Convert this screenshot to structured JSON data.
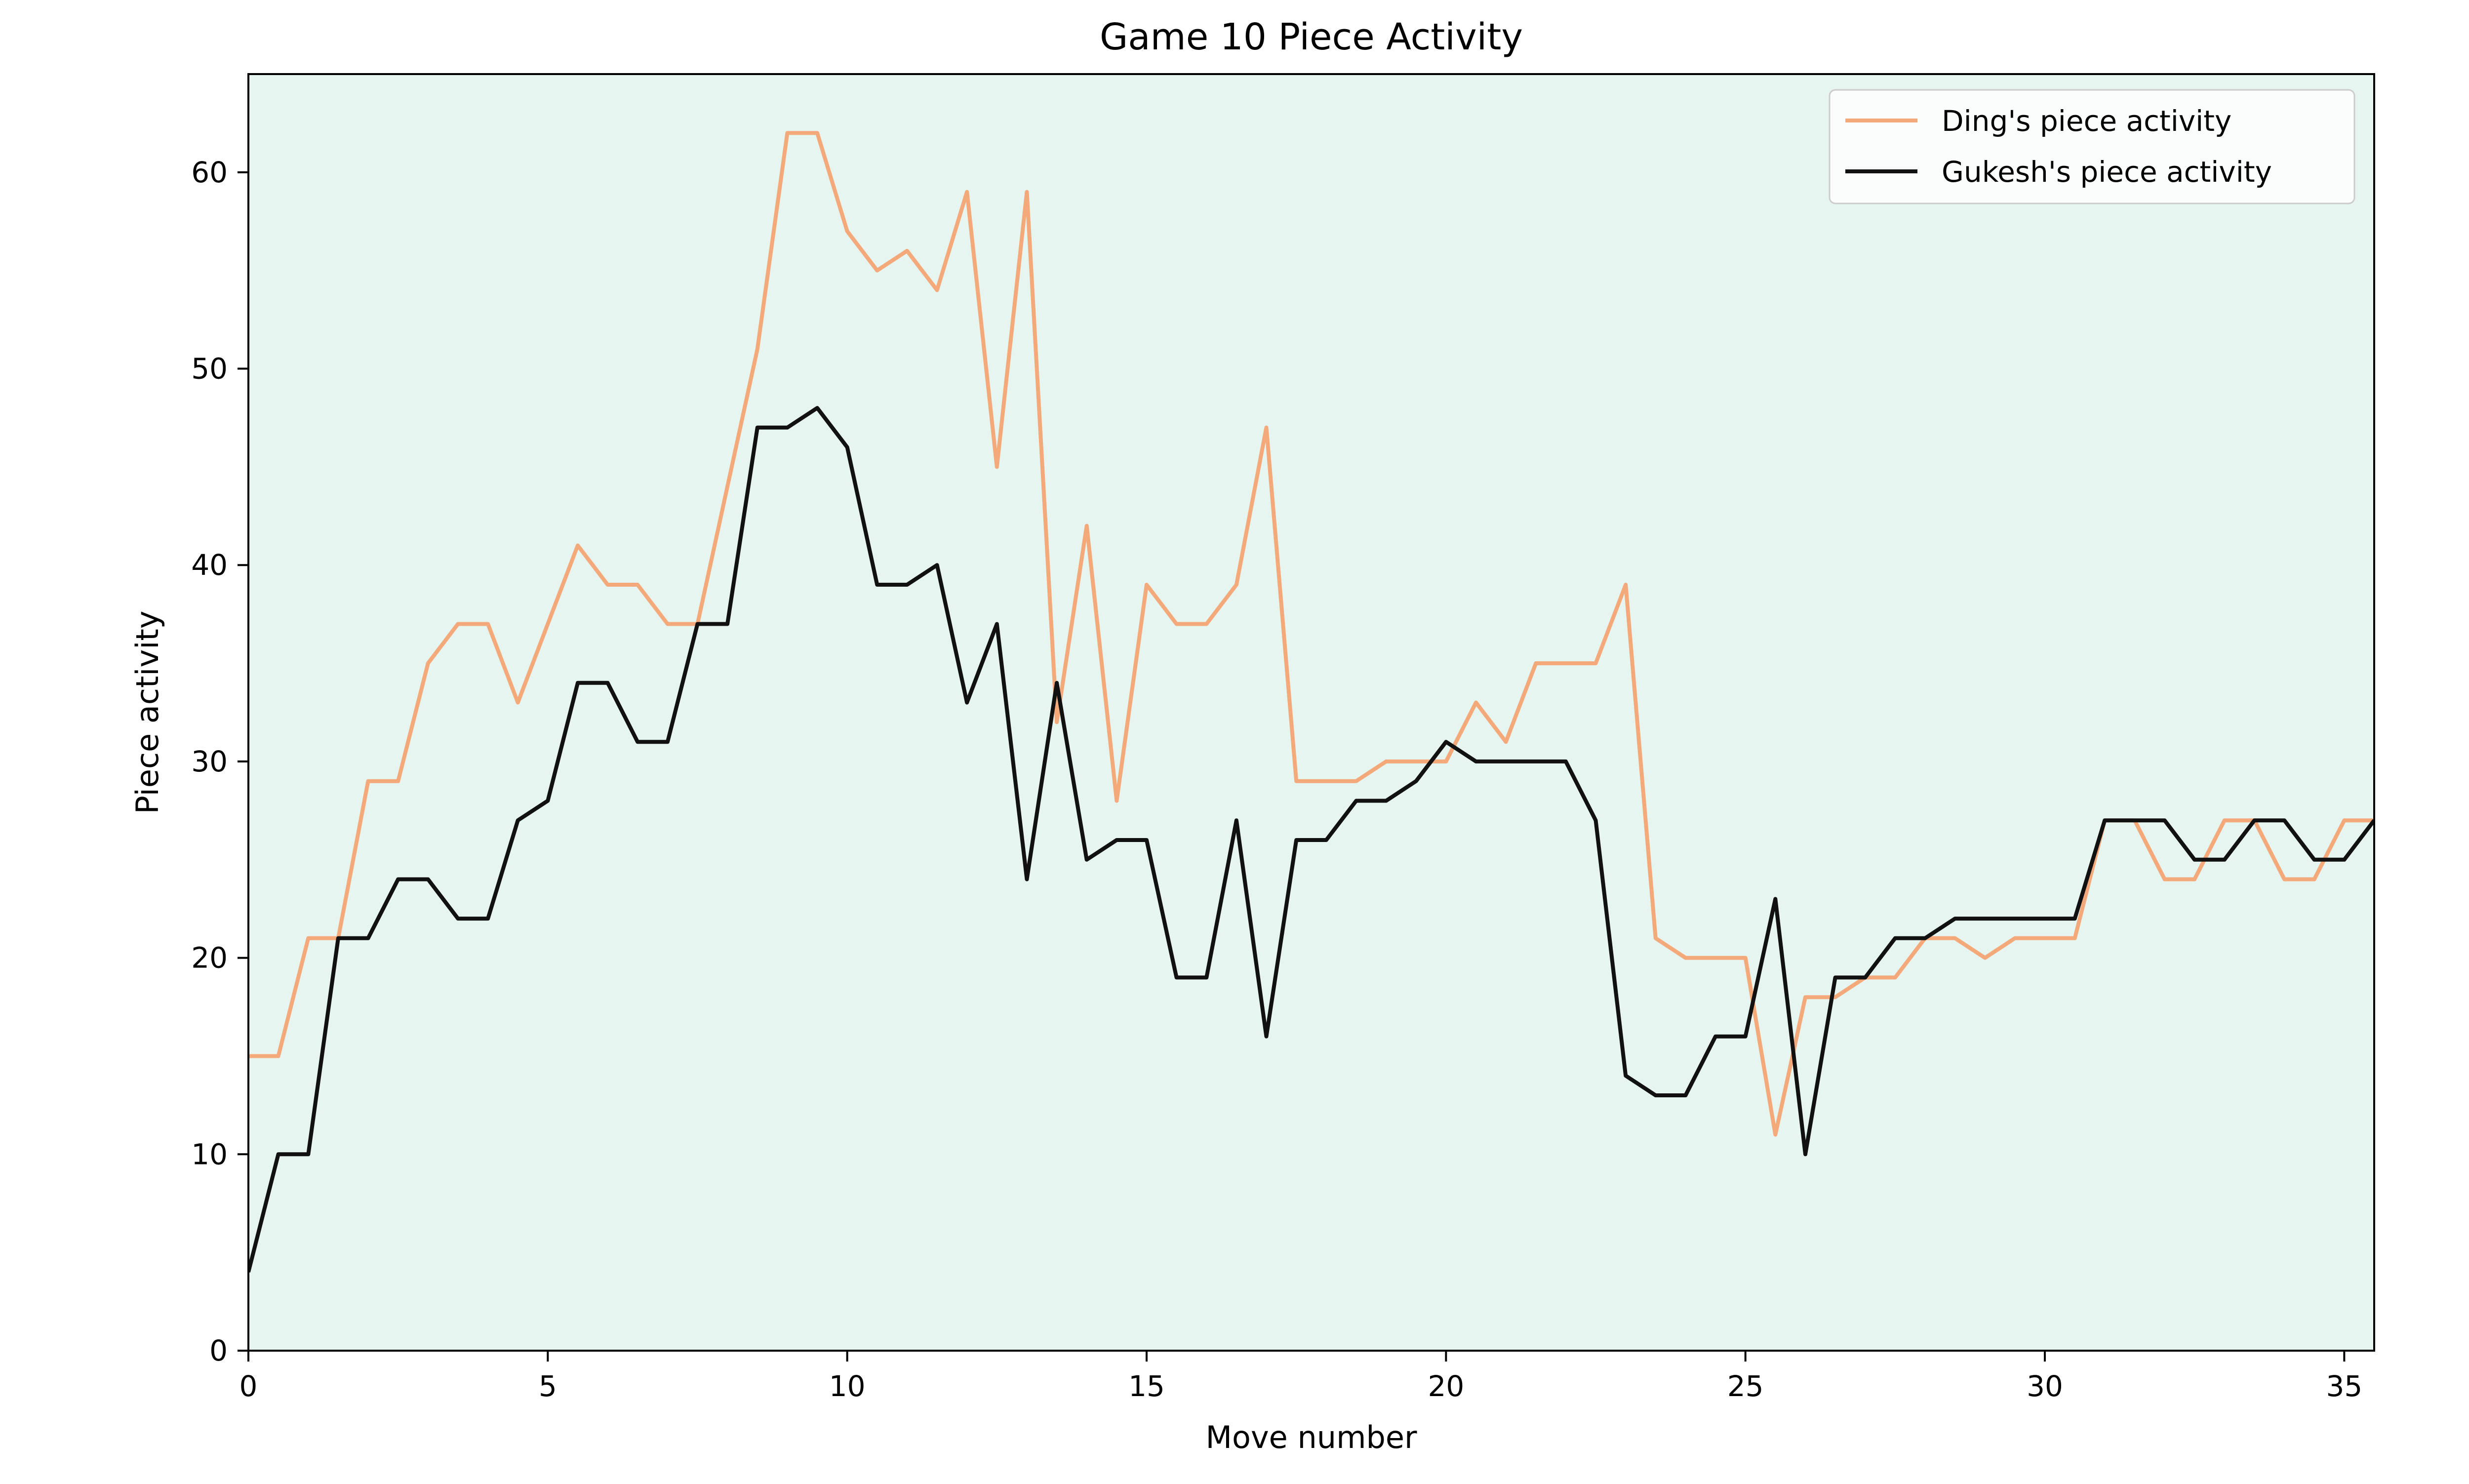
{
  "chart_data": {
    "type": "line",
    "title": "Game 10 Piece Activity",
    "xlabel": "Move number",
    "ylabel": "Piece activity",
    "xlim": [
      0,
      35.5
    ],
    "ylim": [
      0,
      65
    ],
    "xticks": [
      0,
      5,
      10,
      15,
      20,
      25,
      30,
      35
    ],
    "yticks": [
      0,
      10,
      20,
      30,
      40,
      50,
      60
    ],
    "grid": false,
    "legend_position": "top-right",
    "plot_background": "#e6f5ef",
    "x": [
      0,
      0.5,
      1,
      1.5,
      2,
      2.5,
      3,
      3.5,
      4,
      4.5,
      5,
      5.5,
      6,
      6.5,
      7,
      7.5,
      8,
      8.5,
      9,
      9.5,
      10,
      10.5,
      11,
      11.5,
      12,
      12.5,
      13,
      13.5,
      14,
      14.5,
      15,
      15.5,
      16,
      16.5,
      17,
      17.5,
      18,
      18.5,
      19,
      19.5,
      20,
      20.5,
      21,
      21.5,
      22,
      22.5,
      23,
      23.5,
      24,
      24.5,
      25,
      25.5,
      26,
      26.5,
      27,
      27.5,
      28,
      28.5,
      29,
      29.5,
      30,
      30.5,
      31,
      31.5,
      32,
      32.5,
      33,
      33.5,
      34,
      34.5,
      35,
      35.5
    ],
    "series": [
      {
        "name": "Ding's piece activity",
        "color": "#f4a97a",
        "values": [
          15,
          15,
          21,
          21,
          29,
          29,
          35,
          37,
          37,
          33,
          37,
          41,
          39,
          39,
          37,
          37,
          44,
          51,
          62,
          62,
          57,
          55,
          56,
          54,
          59,
          45,
          59,
          32,
          42,
          28,
          39,
          37,
          37,
          39,
          47,
          29,
          29,
          29,
          30,
          30,
          30,
          33,
          31,
          35,
          35,
          35,
          39,
          21,
          20,
          20,
          20,
          11,
          18,
          18,
          19,
          19,
          21,
          21,
          20,
          21,
          21,
          21,
          27,
          27,
          24,
          24,
          27,
          27,
          24,
          24,
          27,
          27
        ]
      },
      {
        "name": "Gukesh's piece activity",
        "color": "#111111",
        "values": [
          4,
          10,
          10,
          21,
          21,
          24,
          24,
          22,
          22,
          27,
          28,
          34,
          34,
          31,
          31,
          37,
          37,
          47,
          47,
          48,
          46,
          39,
          39,
          40,
          33,
          37,
          24,
          34,
          25,
          26,
          26,
          19,
          19,
          27,
          16,
          26,
          26,
          28,
          28,
          29,
          31,
          30,
          30,
          30,
          30,
          27,
          14,
          13,
          13,
          16,
          16,
          23,
          10,
          19,
          19,
          21,
          21,
          22,
          22,
          22,
          22,
          22,
          27,
          27,
          27,
          25,
          25,
          27,
          27,
          25,
          25,
          27
        ]
      }
    ]
  }
}
